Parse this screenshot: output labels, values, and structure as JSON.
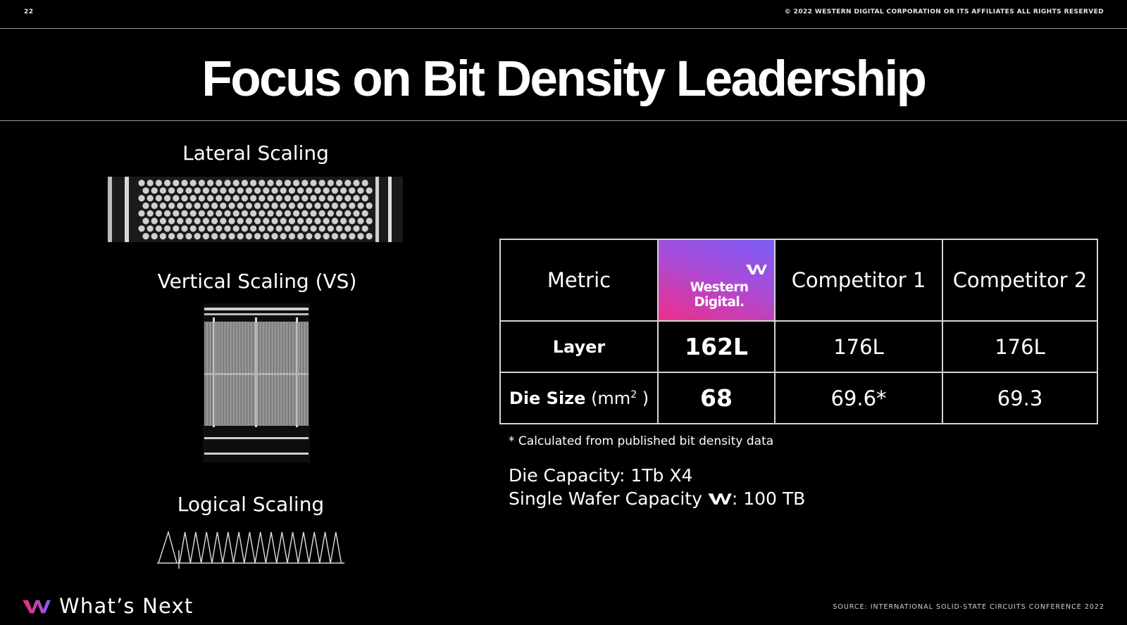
{
  "header": {
    "page_number": "22",
    "copyright": "© 2022 WESTERN DIGITAL CORPORATION OR ITS AFFILIATES  ALL RIGHTS RESERVED"
  },
  "title": "Focus on Bit Density Leadership",
  "left_panel": {
    "lateral_label": "Lateral Scaling",
    "vertical_label": "Vertical Scaling (VS)",
    "logical_label": "Logical Scaling"
  },
  "table": {
    "headers": {
      "metric": "Metric",
      "wd": "Western Digital.",
      "competitor1": "Competitor 1",
      "competitor2": "Competitor 2"
    },
    "rows": [
      {
        "label": "Layer",
        "unit": "",
        "wd": "162L",
        "competitor1": "176L",
        "competitor2": "176L"
      },
      {
        "label": "Die Size",
        "unit_prefix": " (mm",
        "unit_sup": "2",
        "unit_suffix": " )",
        "wd": "68",
        "competitor1": "69.6*",
        "competitor2": "69.3"
      }
    ]
  },
  "footnote": "* Calculated from published bit density data",
  "capacity": {
    "die_capacity": "Die Capacity: 1Tb X4",
    "wafer_prefix": "Single Wafer Capacity ",
    "wafer_suffix": ": 100 TB"
  },
  "footer": {
    "whats_next": "What’s Next",
    "source": "SOURCE: INTERNATIONAL SOLID-STATE CIRCUITS CONFERENCE 2022"
  },
  "colors": {
    "background": "#000000",
    "wd_purple": "#9b5cf7",
    "gradient_start": "#7a5cf5",
    "gradient_end": "#ee2f8a"
  },
  "icons": [
    "western-digital-mark-icon"
  ]
}
